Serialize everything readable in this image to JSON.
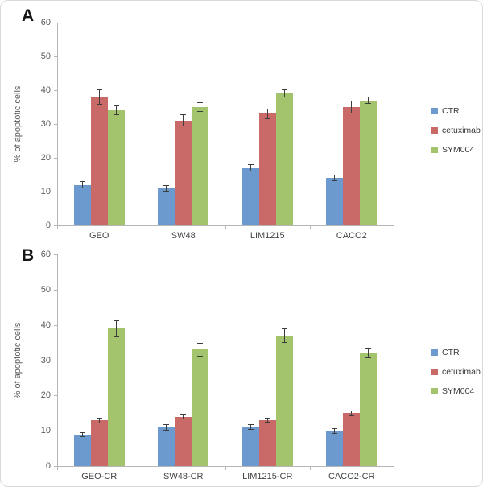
{
  "figure": {
    "background": "#ffffff",
    "border_color": "#d8d8d8"
  },
  "chart_data": [
    {
      "type": "bar",
      "panel_label": "A",
      "title": "",
      "xlabel": "",
      "ylabel": "% of apoptotic cells",
      "ylim": [
        0,
        60
      ],
      "yticks": [
        0,
        10,
        20,
        30,
        40,
        50,
        60
      ],
      "grid": false,
      "legend_position": "right",
      "error_bars": true,
      "error_bar_color": "#3d3d3d",
      "axis_color": "#b5b5b5",
      "categories": [
        "GEO",
        "SW48",
        "LIM1215",
        "CACO2"
      ],
      "series": [
        {
          "name": "CTR",
          "color": "#6c99ce",
          "values": [
            12,
            11,
            17,
            14
          ],
          "errors": [
            1,
            1,
            1,
            1
          ]
        },
        {
          "name": "cetuximab",
          "color": "#c96a68",
          "values": [
            38,
            31,
            33,
            35
          ],
          "errors": [
            2.2,
            1.8,
            1.5,
            1.8
          ]
        },
        {
          "name": "SYM004",
          "color": "#a4c36d",
          "values": [
            34,
            35,
            39,
            37
          ],
          "errors": [
            1.4,
            1.4,
            1.2,
            1
          ]
        }
      ]
    },
    {
      "type": "bar",
      "panel_label": "B",
      "title": "",
      "xlabel": "",
      "ylabel": "% of apoptotic cells",
      "ylim": [
        0,
        60
      ],
      "yticks": [
        0,
        10,
        20,
        30,
        40,
        50,
        60
      ],
      "grid": false,
      "legend_position": "right",
      "error_bars": true,
      "error_bar_color": "#3d3d3d",
      "axis_color": "#b5b5b5",
      "categories": [
        "GEO-CR",
        "SW48-CR",
        "LIM1215-CR",
        "CACO2-CR"
      ],
      "series": [
        {
          "name": "CTR",
          "color": "#6c99ce",
          "values": [
            9,
            11,
            11,
            10
          ],
          "errors": [
            0.7,
            0.9,
            0.8,
            0.8
          ]
        },
        {
          "name": "cetuximab",
          "color": "#c96a68",
          "values": [
            13,
            14,
            13,
            15
          ],
          "errors": [
            0.8,
            0.8,
            0.7,
            0.8
          ]
        },
        {
          "name": "SYM004",
          "color": "#a4c36d",
          "values": [
            39,
            33,
            37,
            32
          ],
          "errors": [
            2.4,
            2,
            2,
            1.5
          ]
        }
      ]
    }
  ]
}
